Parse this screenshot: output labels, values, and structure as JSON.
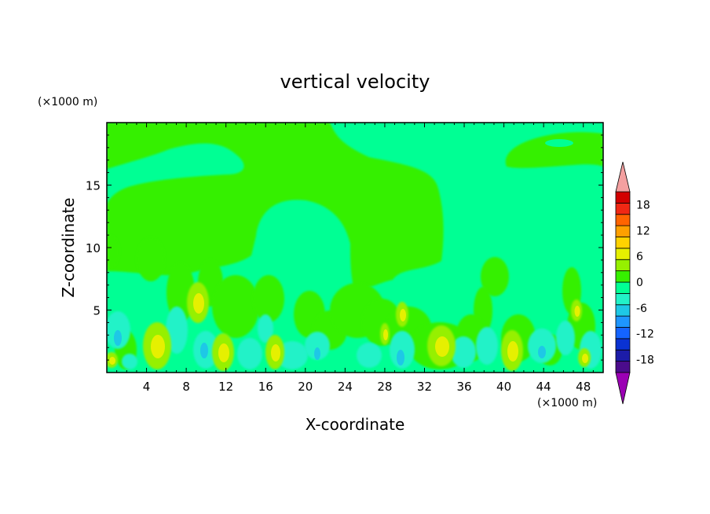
{
  "chart_data": {
    "type": "heatmap",
    "title": "vertical velocity",
    "xlabel": "X-coordinate",
    "ylabel": "Z-coordinate",
    "x_unit": "(×1000 m)",
    "y_unit": "(×1000 m)",
    "xlim": [
      0,
      50
    ],
    "ylim": [
      0,
      20
    ],
    "x_ticks": [
      4,
      8,
      12,
      16,
      20,
      24,
      28,
      32,
      36,
      40,
      44,
      48
    ],
    "y_ticks": [
      5,
      10,
      15
    ],
    "colorbar": {
      "tick_labels": [
        18,
        12,
        6,
        0,
        -6,
        -12,
        -18
      ],
      "levels": [
        -21,
        -18,
        -15,
        -12,
        -9,
        -6,
        -3,
        0,
        3,
        6,
        9,
        12,
        15,
        18,
        21
      ],
      "colors": [
        "#4b0c8c",
        "#1c1ca8",
        "#0a32d2",
        "#1464ff",
        "#1e96ff",
        "#1ec8e6",
        "#22f2c8",
        "#00ff94",
        "#36f000",
        "#96f000",
        "#e6f000",
        "#ffd200",
        "#ffa000",
        "#ff6400",
        "#f02814",
        "#d20000"
      ],
      "under_color": "#9b00b4",
      "over_color": "#f4a0a0"
    },
    "background_level": "0 to 3 (green)",
    "features": [
      {
        "region": "upper layer (z 13–18)",
        "value_band": "0 to 3"
      },
      {
        "region": "dome x 15–25, z below 14",
        "value_band": "-3 to 0"
      },
      {
        "region": "updraft cores near x 5, 9, 11, 17, 30, 34, 41, 47",
        "value_band": "3 to 9"
      },
      {
        "region": "low levels between updrafts",
        "value_band": "-6 to -3"
      }
    ]
  }
}
